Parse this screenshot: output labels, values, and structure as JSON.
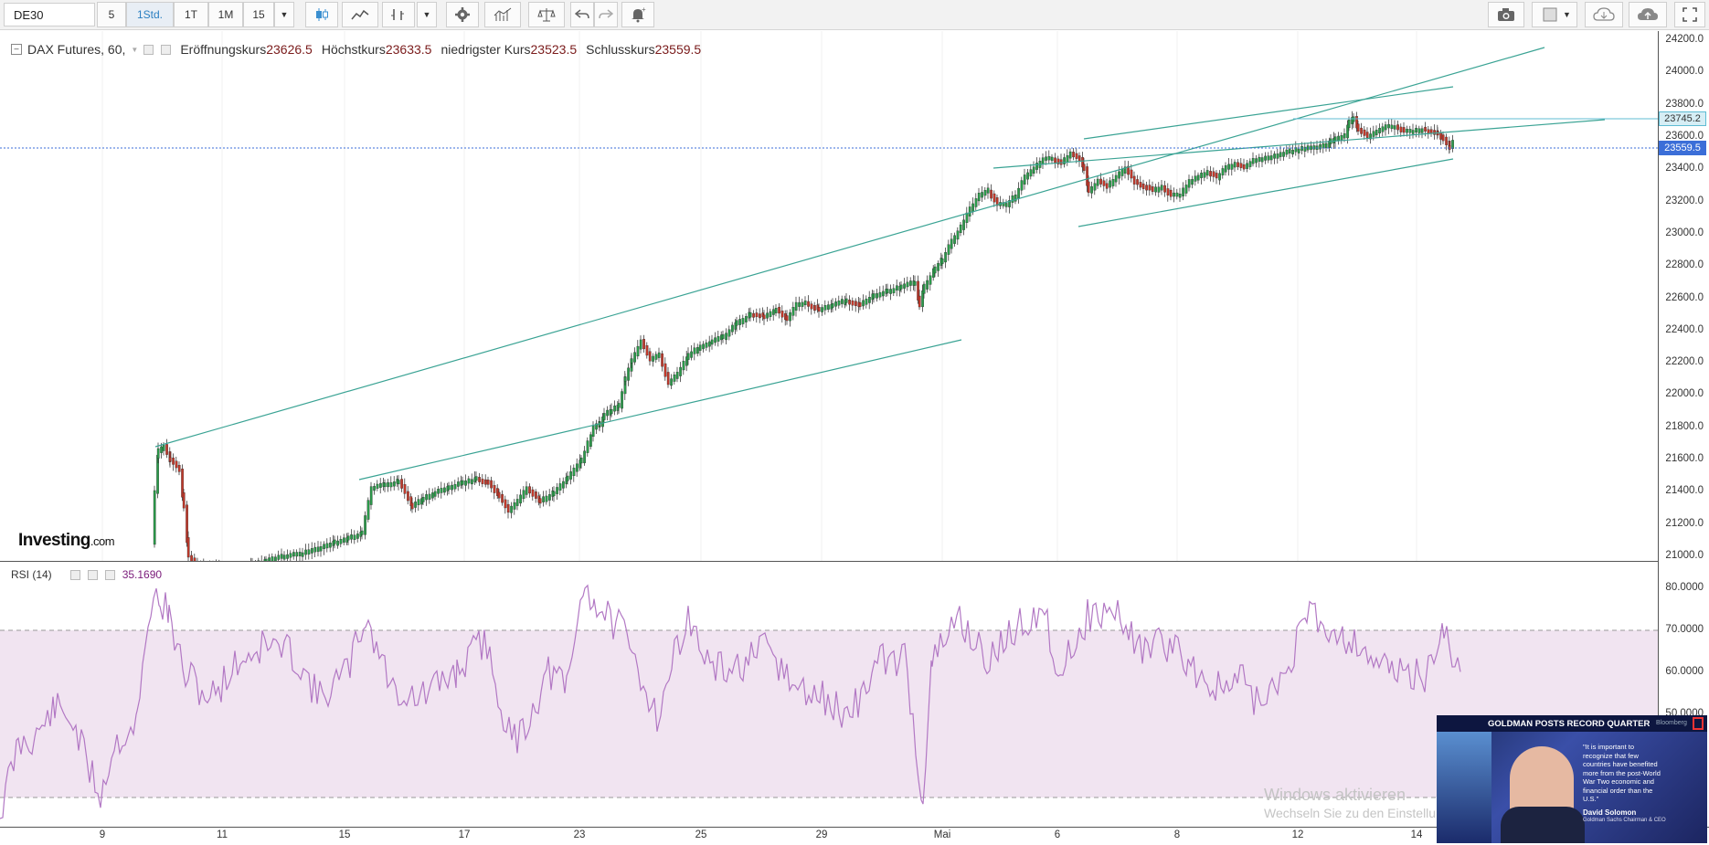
{
  "toolbar": {
    "symbol": "DE30",
    "intervals": [
      "5",
      "1Std.",
      "1T",
      "1M",
      "15"
    ],
    "active_interval": "1Std."
  },
  "legend": {
    "instrument": "DAX Futures, 60,",
    "open_label": "Eröffnungskurs",
    "open_value": "23626.5",
    "high_label": "Höchstkurs",
    "high_value": "23633.5",
    "low_label": "niedrigster Kurs",
    "low_value": "23523.5",
    "close_label": "Schlusskurs",
    "close_value": "23559.5"
  },
  "brand": {
    "name": "Investing",
    "suffix": ".com"
  },
  "price_axis": {
    "ticks": [
      "24200.0",
      "24000.0",
      "23800.0",
      "23600.0",
      "23400.0",
      "23200.0",
      "23000.0",
      "22800.0",
      "22600.0",
      "22400.0",
      "22200.0",
      "22000.0",
      "21800.0",
      "21600.0",
      "21400.0",
      "21200.0",
      "21000.0"
    ],
    "marker_upper": "23745.2",
    "marker_current": "23559.5"
  },
  "rsi": {
    "label": "RSI (14)",
    "value": "35.1690",
    "ticks": [
      "80.0000",
      "70.0000",
      "60.0000",
      "50.0000"
    ]
  },
  "time_axis": {
    "labels": [
      "9",
      "11",
      "15",
      "17",
      "23",
      "25",
      "29",
      "Mai",
      "6",
      "8",
      "12",
      "14"
    ]
  },
  "overlay": {
    "headline": "GOLDMAN POSTS RECORD QUARTER",
    "source": "Bloomberg",
    "quote": "\"It is important to recognize that few countries have benefited more from the post-World War Two economic and financial order than the U.S.\"",
    "person": "David Solomon",
    "person_title": "Goldman Sachs Chairman & CEO"
  },
  "watermark": {
    "line1": "Windows aktivieren",
    "line2": "Wechseln Sie zu den Einstellungen, um Windows zu aktivieren."
  },
  "colors": {
    "up": "#2b9a4a",
    "down": "#c0392b",
    "channel": "#3aa394",
    "rsi_line": "#b278c4",
    "rsi_band": "#f1e4f1",
    "marker": "#3b6ed8"
  }
}
